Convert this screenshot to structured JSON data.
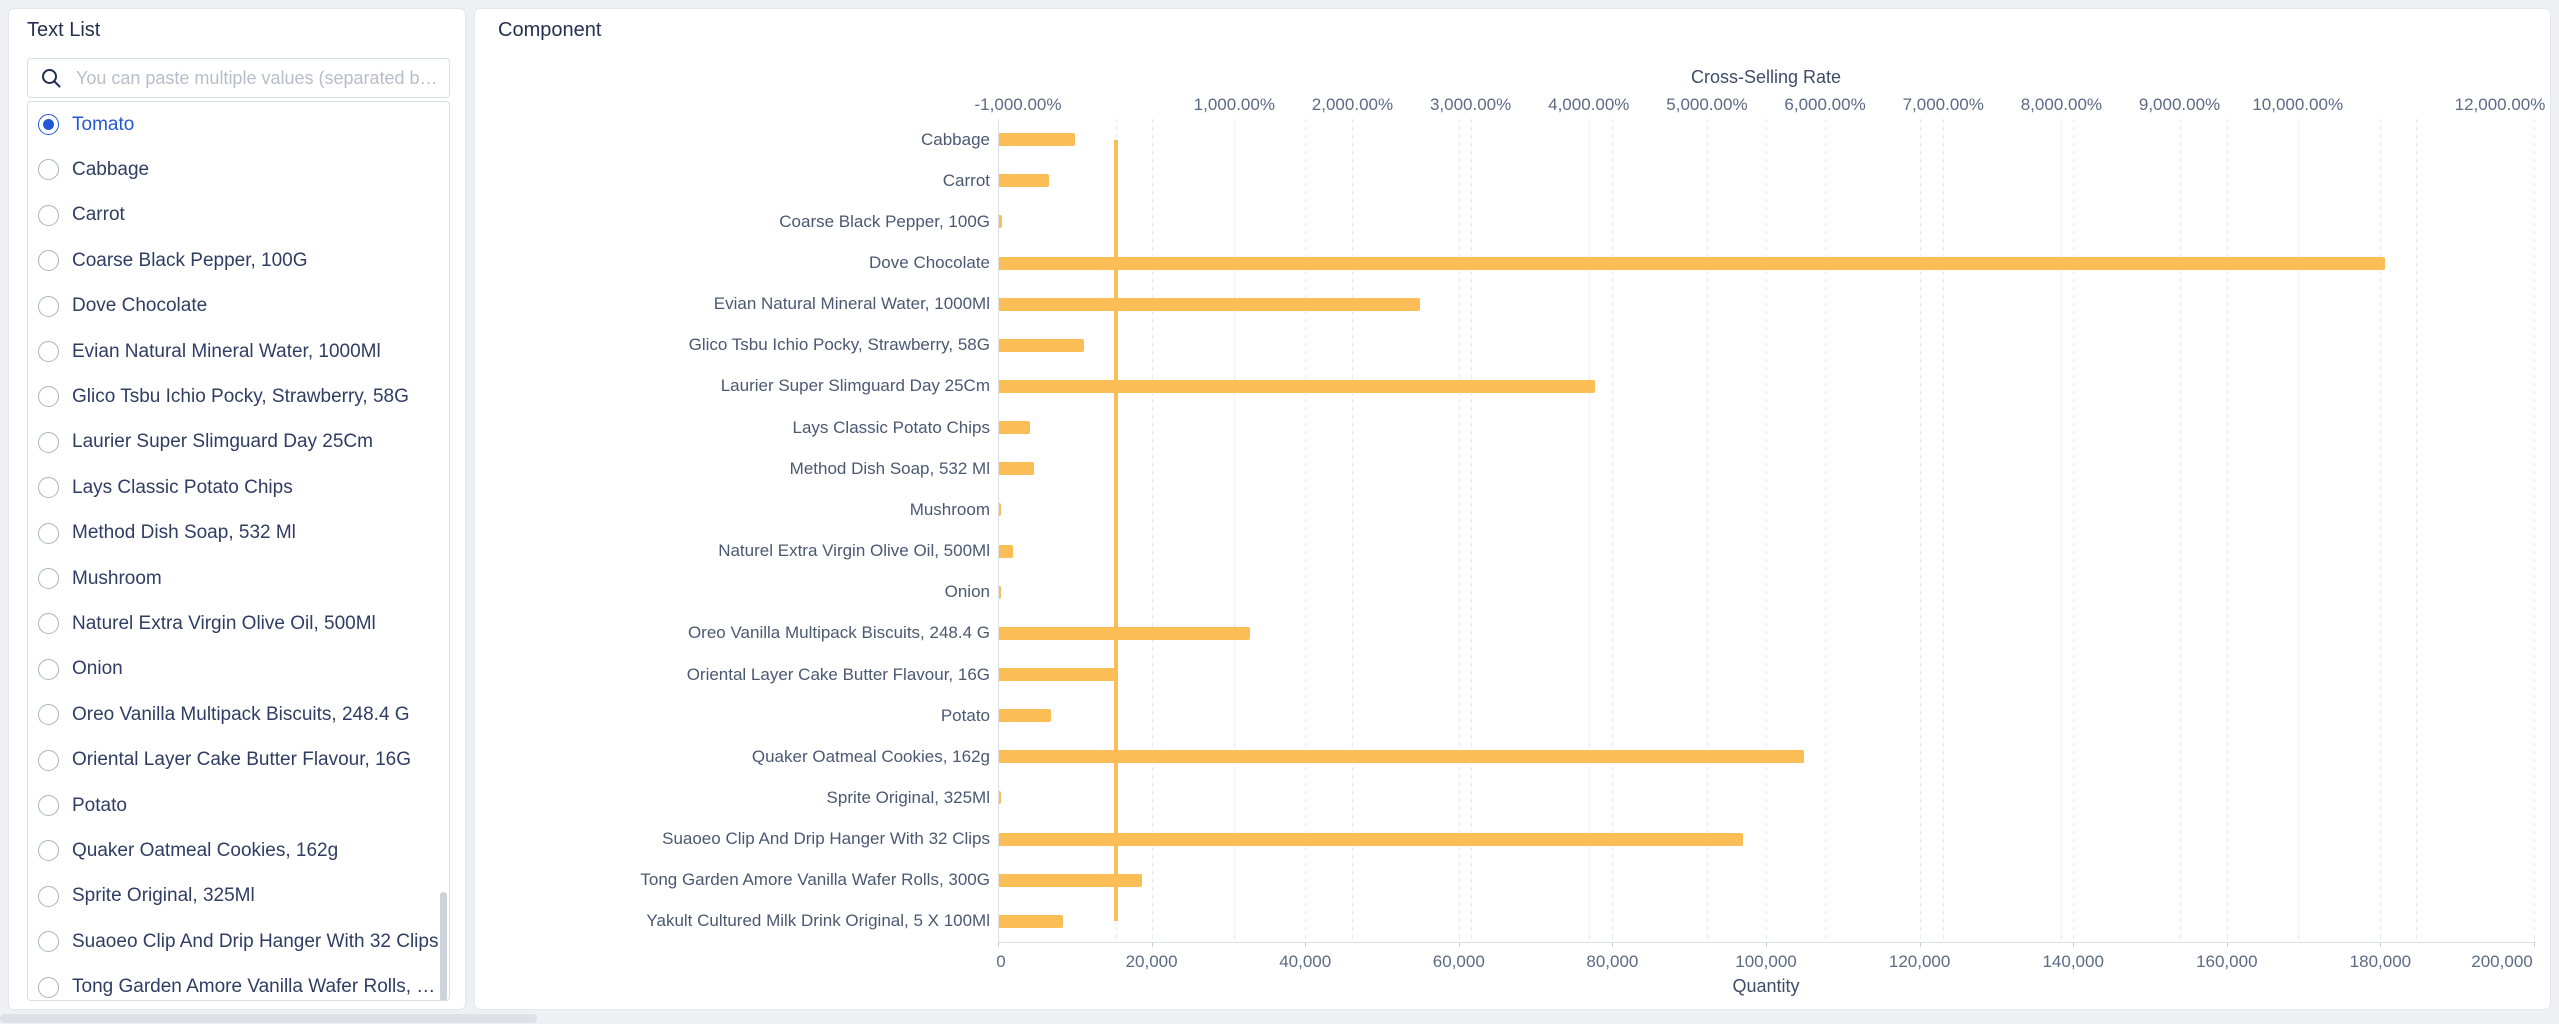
{
  "colors": {
    "bar": "#fbbd55",
    "line": "#fbbd55",
    "selected_blue": "#2457d6"
  },
  "sidebar": {
    "title": "Text List",
    "search_placeholder": "You can paste multiple values (separated b…",
    "items": [
      {
        "label": "Tomato",
        "selected": true
      },
      {
        "label": "Cabbage",
        "selected": false
      },
      {
        "label": "Carrot",
        "selected": false
      },
      {
        "label": "Coarse Black Pepper, 100G",
        "selected": false
      },
      {
        "label": "Dove Chocolate",
        "selected": false
      },
      {
        "label": "Evian Natural Mineral Water, 1000Ml",
        "selected": false
      },
      {
        "label": "Glico Tsbu Ichio Pocky, Strawberry, 58G",
        "selected": false
      },
      {
        "label": "Laurier Super Slimguard Day 25Cm",
        "selected": false
      },
      {
        "label": "Lays Classic Potato Chips",
        "selected": false
      },
      {
        "label": "Method Dish Soap,  532 Ml",
        "selected": false
      },
      {
        "label": "Mushroom",
        "selected": false
      },
      {
        "label": "Naturel Extra Virgin Olive Oil, 500Ml",
        "selected": false
      },
      {
        "label": "Onion",
        "selected": false
      },
      {
        "label": "Oreo Vanilla Multipack Biscuits, 248.4 G",
        "selected": false
      },
      {
        "label": "Oriental Layer Cake Butter Flavour, 16G",
        "selected": false
      },
      {
        "label": "Potato",
        "selected": false
      },
      {
        "label": "Quaker Oatmeal Cookies, 162g",
        "selected": false
      },
      {
        "label": "Sprite Original, 325Ml",
        "selected": false
      },
      {
        "label": "Suaoeo Clip And Drip Hanger With 32 Clips",
        "selected": false
      },
      {
        "label": "Tong Garden Amore Vanilla Wafer Rolls, 30…",
        "selected": false
      }
    ]
  },
  "chart": {
    "panel_title": "Component",
    "chart_data": {
      "type": "bar",
      "orientation": "horizontal",
      "categories": [
        "Cabbage",
        "Carrot",
        "Coarse Black Pepper, 100G",
        "Dove Chocolate",
        "Evian Natural Mineral Water, 1000Ml",
        "Glico Tsbu Ichio Pocky, Strawberry, 58G",
        "Laurier Super Slimguard Day 25Cm",
        "Lays Classic Potato Chips",
        "Method Dish Soap,  532 Ml",
        "Mushroom",
        "Naturel Extra Virgin Olive Oil, 500Ml",
        "Onion",
        "Oreo Vanilla Multipack Biscuits, 248.4 G",
        "Oriental Layer Cake Butter Flavour, 16G",
        "Potato",
        "Quaker Oatmeal Cookies, 162g",
        "Sprite Original, 325Ml",
        "Suaoeo Clip And Drip Hanger With 32 Clips",
        "Tong Garden Amore Vanilla Wafer Rolls, 300G",
        "Yakult Cultured Milk Drink Original, 5 X 100Ml"
      ],
      "series": [
        {
          "name": "Quantity",
          "type": "bar",
          "axis": "bottom",
          "values": [
            10000,
            6700,
            500,
            180600,
            55000,
            11200,
            77700,
            4200,
            4700,
            300,
            2000,
            150,
            32800,
            15600,
            6900,
            105000,
            200,
            97000,
            18800,
            8500
          ]
        },
        {
          "name": "Cross-Selling Rate",
          "type": "line",
          "axis": "top",
          "values_percent": [
            0,
            0,
            0,
            0,
            0,
            0,
            0,
            0,
            0,
            0,
            0,
            0,
            0,
            0,
            0,
            0,
            0,
            0,
            0,
            0
          ]
        }
      ],
      "top_axis": {
        "label": "Cross-Selling Rate",
        "range_percent": [
          -1000,
          12000
        ],
        "grid_percent": [
          0,
          1000,
          2000,
          3000,
          4000,
          5000,
          6000,
          7000,
          8000,
          9000,
          10000,
          11000,
          12000
        ],
        "ticks": [
          {
            "value": -1000,
            "label": "-1,000.00%"
          },
          {
            "value": 1000,
            "label": "1,000.00%"
          },
          {
            "value": 2000,
            "label": "2,000.00%"
          },
          {
            "value": 3000,
            "label": "3,000.00%"
          },
          {
            "value": 4000,
            "label": "4,000.00%"
          },
          {
            "value": 5000,
            "label": "5,000.00%"
          },
          {
            "value": 6000,
            "label": "6,000.00%"
          },
          {
            "value": 7000,
            "label": "7,000.00%"
          },
          {
            "value": 8000,
            "label": "8,000.00%"
          },
          {
            "value": 9000,
            "label": "9,000.00%"
          },
          {
            "value": 10000,
            "label": "10,000.00%"
          },
          {
            "value": 12000,
            "label": "12,000.00%"
          }
        ]
      },
      "bottom_axis": {
        "label": "Quantity",
        "range": [
          0,
          200000
        ],
        "grid_values": [
          20000,
          40000,
          60000,
          80000,
          100000,
          120000,
          140000,
          160000,
          180000,
          200000
        ],
        "ticks": [
          {
            "value": 0,
            "label": "0"
          },
          {
            "value": 20000,
            "label": "20,000"
          },
          {
            "value": 40000,
            "label": "40,000"
          },
          {
            "value": 60000,
            "label": "60,000"
          },
          {
            "value": 80000,
            "label": "80,000"
          },
          {
            "value": 100000,
            "label": "100,000"
          },
          {
            "value": 120000,
            "label": "120,000"
          },
          {
            "value": 140000,
            "label": "140,000"
          },
          {
            "value": 160000,
            "label": "160,000"
          },
          {
            "value": 180000,
            "label": "180,000"
          },
          {
            "value": 200000,
            "label": "200,000"
          }
        ]
      }
    }
  }
}
